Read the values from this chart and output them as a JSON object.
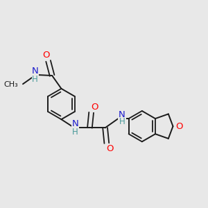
{
  "background_color": "#e8e8e8",
  "bond_color": "#1a1a1a",
  "atom_colors": {
    "O": "#ff0000",
    "N": "#1a1acc",
    "H": "#4a9a9a",
    "C": "#1a1a1a"
  },
  "figsize": [
    3.0,
    3.0
  ],
  "dpi": 100,
  "lw": 1.4,
  "lw_double": 1.3
}
